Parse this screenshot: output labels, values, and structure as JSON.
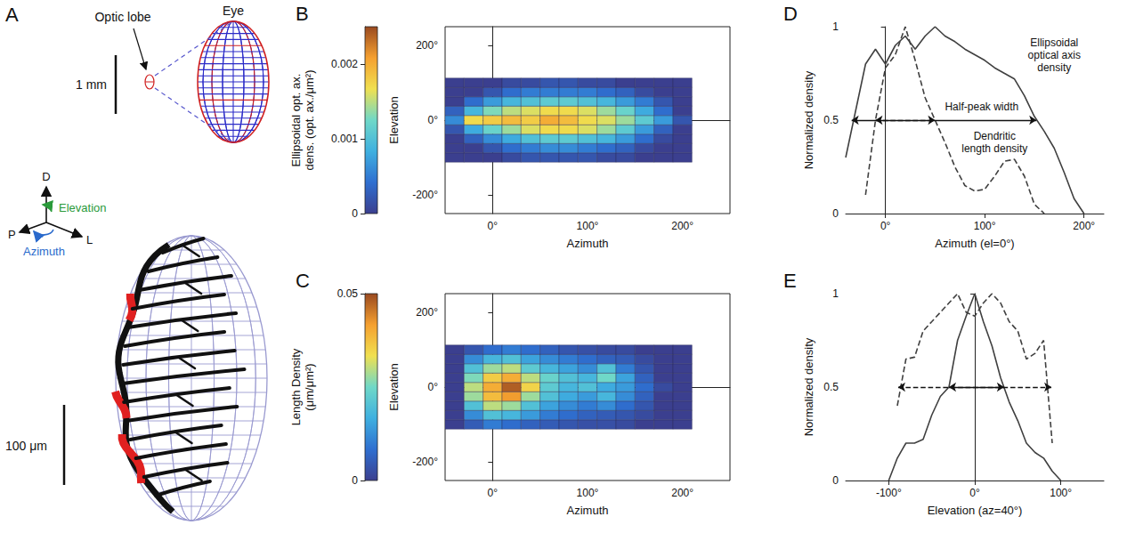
{
  "panel_a": {
    "panel_label": "A",
    "optic_lobe": "Optic lobe",
    "eye": "Eye",
    "eye_scale": "1 mm",
    "axes": {
      "dorsal": "D",
      "posterior": "P",
      "lateral": "L",
      "elevation": "Elevation",
      "azimuth": "Azimuth"
    },
    "dendrite_scale": "100 μm"
  },
  "chart_data": [
    {
      "type": "heatmap",
      "panel_label": "B",
      "x_label": "Azimuth",
      "y_label": "Elevation",
      "colorbar_label": "Ellipsoidal opt. ax. dens. (opt. ax./μm²)",
      "x": [
        -40,
        -20,
        0,
        20,
        40,
        60,
        80,
        100,
        120,
        140,
        160,
        180,
        200
      ],
      "y": [
        -100,
        -75,
        -50,
        -25,
        0,
        25,
        50,
        75,
        100
      ],
      "values": [
        [
          0,
          0,
          0,
          0.0001,
          0.0002,
          0.0002,
          0.0002,
          0.0002,
          0.0001,
          0.0001,
          0,
          0,
          0
        ],
        [
          0,
          0,
          0.0002,
          0.0004,
          0.0005,
          0.0006,
          0.0006,
          0.0005,
          0.0004,
          0.0003,
          0.0001,
          0,
          0
        ],
        [
          0,
          0.0003,
          0.0006,
          0.0008,
          0.001,
          0.0011,
          0.0011,
          0.001,
          0.0009,
          0.0007,
          0.0004,
          0.0001,
          0
        ],
        [
          0.0002,
          0.0008,
          0.0012,
          0.0014,
          0.0016,
          0.0017,
          0.0017,
          0.0016,
          0.0014,
          0.0011,
          0.0007,
          0.0003,
          0
        ],
        [
          0.0006,
          0.0017,
          0.0018,
          0.0019,
          0.0018,
          0.002,
          0.0019,
          0.0017,
          0.0016,
          0.0014,
          0.0011,
          0.0007,
          0.0002
        ],
        [
          0.0003,
          0.0009,
          0.0013,
          0.0015,
          0.0016,
          0.0017,
          0.0017,
          0.0016,
          0.0014,
          0.0012,
          0.0008,
          0.0004,
          0
        ],
        [
          0,
          0.0004,
          0.0007,
          0.0009,
          0.001,
          0.0011,
          0.0011,
          0.001,
          0.0009,
          0.0007,
          0.0005,
          0.0002,
          0
        ],
        [
          0,
          0,
          0.0002,
          0.0004,
          0.0005,
          0.0005,
          0.0005,
          0.0005,
          0.0004,
          0.0003,
          0.0001,
          0,
          0
        ],
        [
          0,
          0,
          0,
          0.0001,
          0.0001,
          0.0002,
          0.0002,
          0.0001,
          0.0001,
          0,
          0,
          0,
          0
        ]
      ],
      "xlim": [
        -50,
        250
      ],
      "xticks": [
        {
          "value": 0,
          "label": "0°"
        },
        {
          "value": 100,
          "label": "100°"
        },
        {
          "value": 200,
          "label": "200°"
        }
      ],
      "ylim": [
        -250,
        250
      ],
      "yticks": [
        {
          "value": -200,
          "label": "-200°"
        },
        {
          "value": 0,
          "label": "0°"
        },
        {
          "value": 200,
          "label": "200°"
        }
      ],
      "colorbar_range": [
        0,
        0.0025
      ],
      "colorbar_ticks": [
        0,
        0.001,
        0.002
      ]
    },
    {
      "type": "heatmap",
      "panel_label": "C",
      "x_label": "Azimuth",
      "y_label": "Elevation",
      "colorbar_label": "Length Density (μm/μm²)",
      "x": [
        -40,
        -20,
        0,
        20,
        40,
        60,
        80,
        100,
        120,
        140,
        160,
        180,
        200
      ],
      "y": [
        -100,
        -75,
        -50,
        -25,
        0,
        25,
        50,
        75,
        100
      ],
      "values": [
        [
          0,
          0.005,
          0.01,
          0.008,
          0.006,
          0.005,
          0.004,
          0.003,
          0.003,
          0.002,
          0,
          0,
          0
        ],
        [
          0,
          0.012,
          0.02,
          0.018,
          0.014,
          0.01,
          0.008,
          0.006,
          0.005,
          0.004,
          0.002,
          0,
          0
        ],
        [
          0,
          0.02,
          0.03,
          0.028,
          0.02,
          0.015,
          0.012,
          0.01,
          0.012,
          0.008,
          0.004,
          0,
          0
        ],
        [
          0,
          0.028,
          0.038,
          0.042,
          0.028,
          0.02,
          0.016,
          0.014,
          0.018,
          0.012,
          0.006,
          0,
          0
        ],
        [
          0,
          0.03,
          0.04,
          0.048,
          0.035,
          0.022,
          0.018,
          0.02,
          0.016,
          0.014,
          0.008,
          0.002,
          0
        ],
        [
          0,
          0.026,
          0.036,
          0.04,
          0.03,
          0.024,
          0.02,
          0.018,
          0.025,
          0.015,
          0.006,
          0,
          0
        ],
        [
          0,
          0.02,
          0.028,
          0.03,
          0.022,
          0.018,
          0.015,
          0.012,
          0.02,
          0.01,
          0.004,
          0,
          0
        ],
        [
          0,
          0.012,
          0.018,
          0.02,
          0.015,
          0.012,
          0.01,
          0.008,
          0.006,
          0.005,
          0.002,
          0,
          0
        ],
        [
          0,
          0.004,
          0.008,
          0.01,
          0.008,
          0.006,
          0.004,
          0.003,
          0.002,
          0.002,
          0,
          0,
          0
        ]
      ],
      "xlim": [
        -50,
        250
      ],
      "xticks": [
        {
          "value": 0,
          "label": "0°"
        },
        {
          "value": 100,
          "label": "100°"
        },
        {
          "value": 200,
          "label": "200°"
        }
      ],
      "ylim": [
        -250,
        250
      ],
      "yticks": [
        {
          "value": -200,
          "label": "-200°"
        },
        {
          "value": 0,
          "label": "0°"
        },
        {
          "value": 200,
          "label": "200°"
        }
      ],
      "colorbar_range": [
        0,
        0.05
      ],
      "colorbar_ticks": [
        0,
        0.05
      ]
    },
    {
      "type": "line",
      "panel_label": "D",
      "x_label": "Azimuth (el=0°)",
      "y_label": "Normalized density",
      "x": [
        -40,
        -30,
        -20,
        -10,
        0,
        10,
        20,
        30,
        40,
        50,
        60,
        70,
        80,
        90,
        100,
        110,
        120,
        130,
        140,
        150,
        160,
        170,
        180,
        190,
        200
      ],
      "series": [
        {
          "name": "Ellipsoidal optical axis density",
          "color": "#404040",
          "line_style": "solid",
          "values": [
            0.3,
            0.55,
            0.8,
            0.88,
            0.8,
            0.9,
            0.95,
            0.88,
            0.95,
            1.0,
            0.95,
            0.92,
            0.88,
            0.85,
            0.82,
            0.78,
            0.75,
            0.72,
            0.63,
            0.52,
            0.44,
            0.35,
            0.22,
            0.08,
            0
          ],
          "half_peak_width": [
            -34,
            152
          ]
        },
        {
          "name": "Dendritic length density",
          "color": "#404040",
          "line_style": "dashed",
          "values": [
            null,
            null,
            0.1,
            0.5,
            0.78,
            0.85,
            1.0,
            0.82,
            0.62,
            0.5,
            0.38,
            0.25,
            0.15,
            0.12,
            0.13,
            0.2,
            0.28,
            0.29,
            0.2,
            0.05,
            0,
            null,
            null,
            null,
            null
          ],
          "half_peak_width": [
            -10,
            50
          ]
        }
      ],
      "annotation": "Half-peak width",
      "half_peak_level": 0.5,
      "xlim": [
        -40,
        220
      ],
      "xticks": [
        {
          "value": 0,
          "label": "0°"
        },
        {
          "value": 100,
          "label": "100°"
        },
        {
          "value": 200,
          "label": "200°"
        }
      ],
      "ylim": [
        0,
        1
      ],
      "yticks": [
        0,
        0.5,
        1
      ]
    },
    {
      "type": "line",
      "panel_label": "E",
      "x_label": "Elevation (az=40°)",
      "y_label": "Normalized density",
      "x": [
        -100,
        -90,
        -80,
        -70,
        -60,
        -50,
        -40,
        -30,
        -20,
        -10,
        0,
        10,
        20,
        30,
        40,
        50,
        60,
        70,
        80,
        90,
        100
      ],
      "series": [
        {
          "color": "#404040",
          "line_style": "solid",
          "values": [
            0,
            0.12,
            0.2,
            0.2,
            0.22,
            0.35,
            0.45,
            0.5,
            0.75,
            0.88,
            1.0,
            0.85,
            0.72,
            0.55,
            0.42,
            0.32,
            0.2,
            0.15,
            0.12,
            0.05,
            0
          ],
          "half_peak_width": [
            -30,
            34
          ]
        },
        {
          "color": "#404040",
          "line_style": "dashed",
          "values": [
            null,
            0.4,
            0.65,
            0.66,
            0.8,
            0.85,
            0.9,
            0.95,
            1.0,
            0.9,
            0.88,
            0.95,
            1.0,
            0.95,
            0.85,
            0.8,
            0.65,
            0.68,
            0.75,
            0.2,
            null
          ],
          "half_peak_width": [
            -89,
            89
          ]
        }
      ],
      "half_peak_level": 0.5,
      "xlim": [
        -150,
        150
      ],
      "xticks": [
        {
          "value": -100,
          "label": "-100°"
        },
        {
          "value": 0,
          "label": "0°"
        },
        {
          "value": 100,
          "label": "100°"
        }
      ],
      "ylim": [
        0,
        1
      ],
      "yticks": [
        0,
        0.5,
        1
      ]
    }
  ]
}
